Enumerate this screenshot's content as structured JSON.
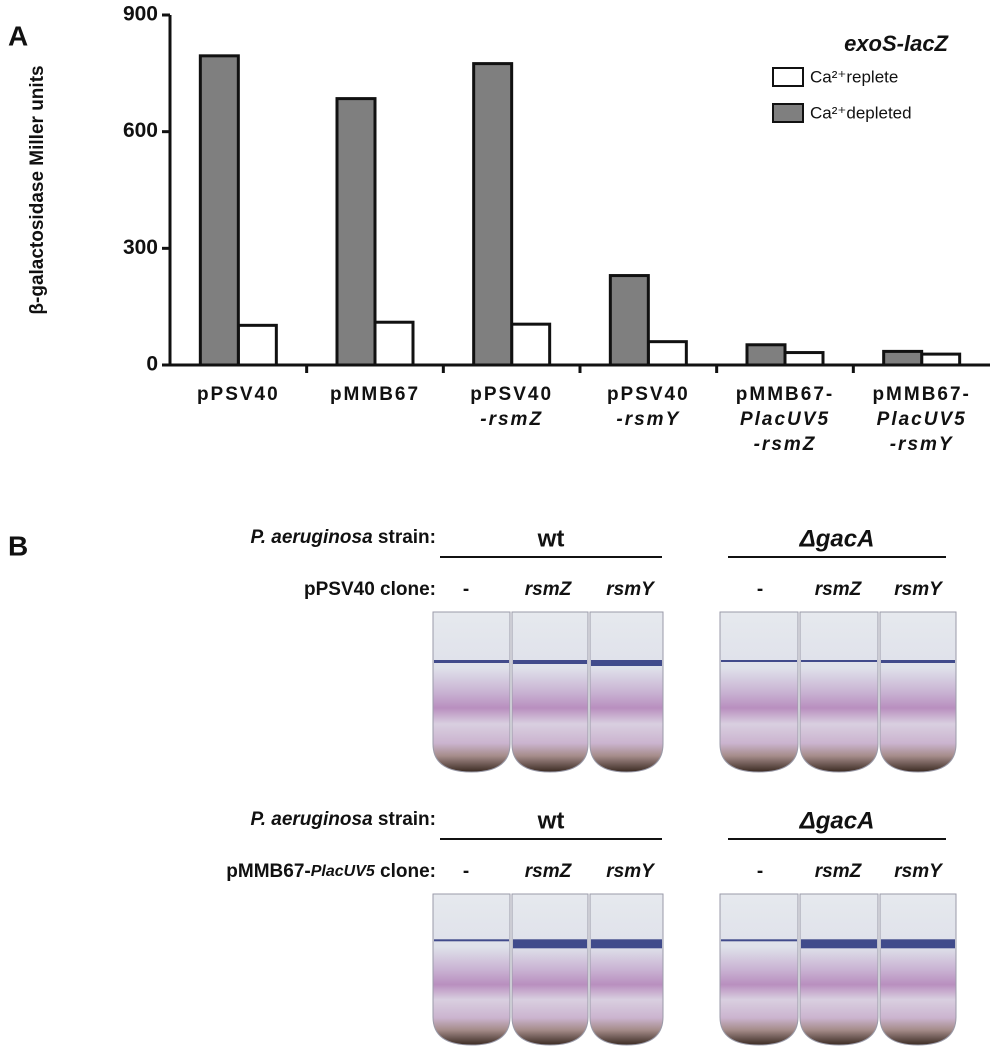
{
  "panel_a_label": "A",
  "chart_data": {
    "type": "bar",
    "ylabel": "β-galactosidase Miller units",
    "legend_title": "exoS-lacZ",
    "legend": "upper right",
    "categories": [
      [
        "pPSV40"
      ],
      [
        "pMMB67"
      ],
      [
        "pPSV40",
        "-rsmZ"
      ],
      [
        "pPSV40",
        "-rsmY"
      ],
      [
        "pMMB67-",
        "PlacUV5",
        "-rsmZ"
      ],
      [
        "pMMB67-",
        "PlacUV5",
        "-rsmY"
      ]
    ],
    "series": [
      {
        "name": "Ca²⁺replete",
        "color": "#ffffff",
        "values": [
          102,
          110,
          105,
          60,
          32,
          28
        ]
      },
      {
        "name": "Ca²⁺depleted",
        "color": "#7f7f7f",
        "values": [
          795,
          685,
          775,
          230,
          52,
          35
        ]
      }
    ],
    "ylim": [
      0,
      900
    ],
    "yticks": [
      0,
      300,
      600,
      900
    ],
    "grid": false
  },
  "panel_b": {
    "label": "B",
    "rows": [
      {
        "strain_label": [
          "P. aeruginosa",
          " strain:"
        ],
        "clone_label": [
          "pPSV40 clone:"
        ],
        "groups": [
          {
            "name": "wt",
            "columns": [
              "-",
              "rsmZ",
              "rsmY"
            ]
          },
          {
            "name": "ΔgacA",
            "columns": [
              "-",
              "rsmZ",
              "rsmY"
            ]
          }
        ]
      },
      {
        "strain_label": [
          "P. aeruginosa",
          " strain:"
        ],
        "clone_label": [
          "pMMB67-",
          "PlacUV5",
          " clone:"
        ],
        "groups": [
          {
            "name": "wt",
            "columns": [
              "-",
              "rsmZ",
              "rsmY"
            ]
          },
          {
            "name": "ΔgacA",
            "columns": [
              "-",
              "rsmZ",
              "rsmY"
            ]
          }
        ]
      }
    ]
  }
}
